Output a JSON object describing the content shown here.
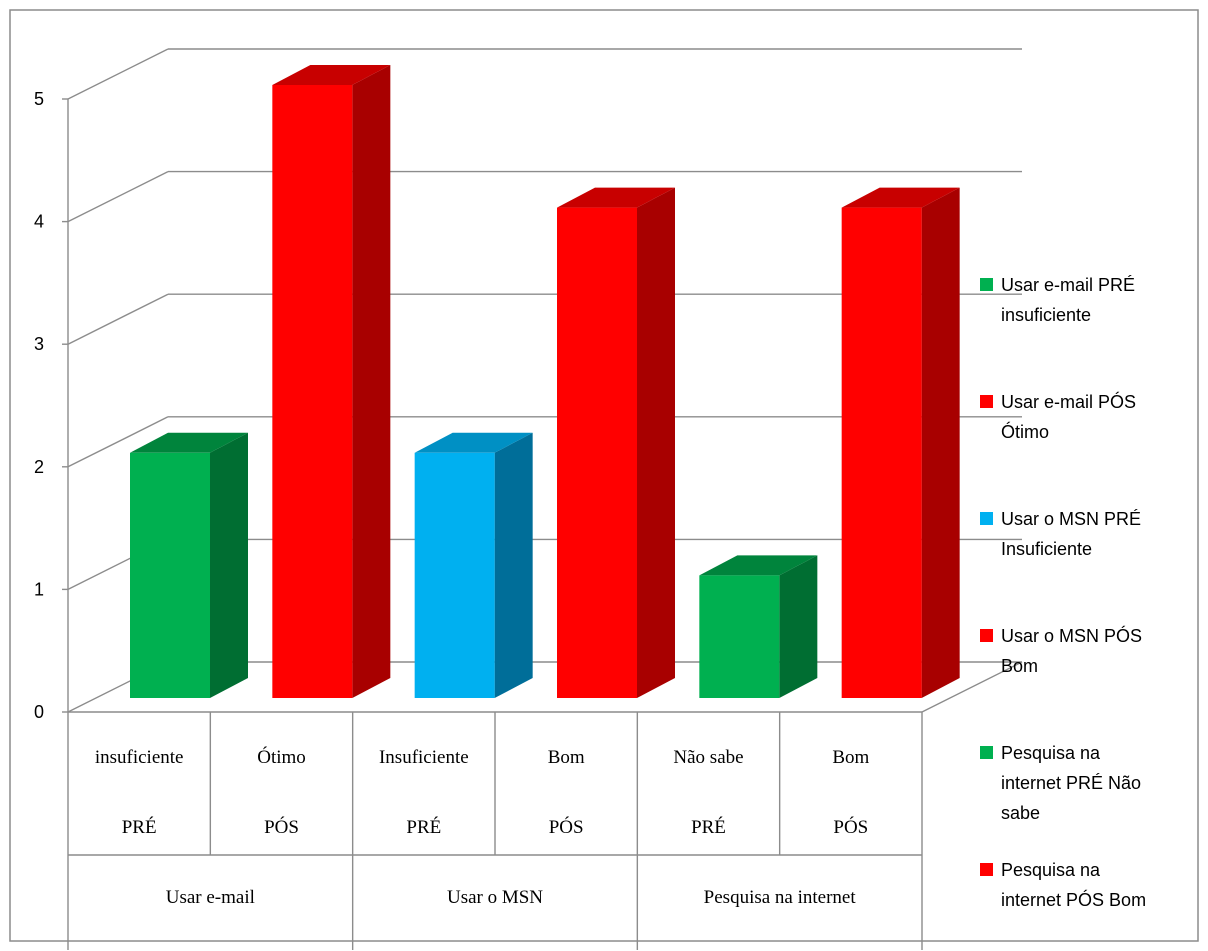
{
  "chart_data": {
    "type": "bar",
    "style": "3d-clustered-column",
    "ylim": [
      0,
      5
    ],
    "yticks": [
      "0",
      "1",
      "2",
      "3",
      "4",
      "5"
    ],
    "grid": true,
    "legend_position": "right",
    "groups": [
      "Usar e-mail",
      "Usar o MSN",
      "Pesquisa na internet"
    ],
    "phases": [
      "PRÉ",
      "PÓS",
      "PRÉ",
      "PÓS",
      "PRÉ",
      "PÓS"
    ],
    "categories": [
      "insuficiente",
      "Ótimo",
      "Insuficiente",
      "Bom",
      "Não sabe",
      "Bom"
    ],
    "values": [
      2,
      5,
      2,
      4,
      1,
      4
    ],
    "colors": [
      "#00b050",
      "#ff0000",
      "#00b0f0",
      "#ff0000",
      "#00b050",
      "#ff0000"
    ],
    "side_colors": [
      "#006e32",
      "#a80000",
      "#006e99",
      "#a80000",
      "#006e32",
      "#a80000"
    ],
    "top_colors": [
      "#00843c",
      "#c80000",
      "#0090c4",
      "#c80000",
      "#00843c",
      "#c80000"
    ],
    "series": [
      {
        "name": "Usar e-mail PRÉ insuficiente",
        "label_lines": [
          "Usar e-mail PRÉ",
          "insuficiente"
        ],
        "color": "#00b050",
        "value": 2
      },
      {
        "name": "Usar e-mail PÓS Ótimo",
        "label_lines": [
          "Usar e-mail PÓS",
          "Ótimo"
        ],
        "color": "#ff0000",
        "value": 5
      },
      {
        "name": "Usar o MSN PRÉ Insuficiente",
        "label_lines": [
          "Usar o MSN PRÉ",
          "Insuficiente"
        ],
        "color": "#00b0f0",
        "value": 2
      },
      {
        "name": "Usar o MSN PÓS Bom",
        "label_lines": [
          "Usar o MSN PÓS",
          "Bom"
        ],
        "color": "#ff0000",
        "value": 4
      },
      {
        "name": "Pesquisa na internet PRÉ Não sabe",
        "label_lines": [
          "Pesquisa na",
          "internet PRÉ Não",
          "sabe"
        ],
        "color": "#00b050",
        "value": 1
      },
      {
        "name": "Pesquisa na internet PÓS Bom",
        "label_lines": [
          "Pesquisa na",
          "internet PÓS Bom"
        ],
        "color": "#ff0000",
        "value": 4
      }
    ]
  }
}
